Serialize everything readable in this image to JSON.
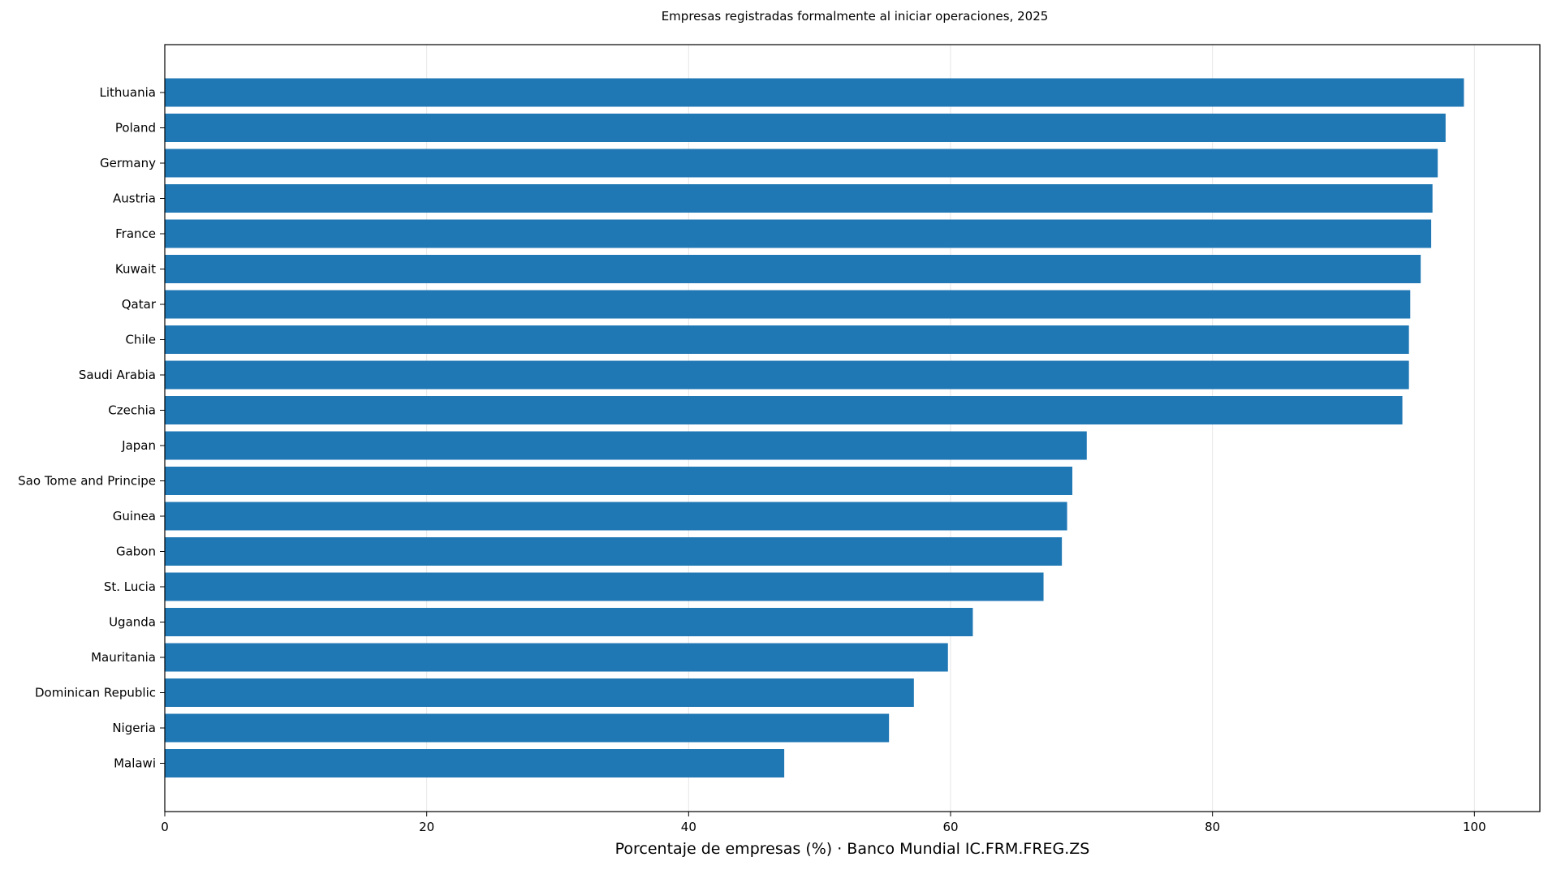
{
  "chart_data": {
    "type": "bar",
    "orientation": "horizontal",
    "title": "Empresas registradas formalmente al iniciar operaciones, 2025",
    "xlabel": "Porcentaje de empresas (%) · Banco Mundial IC.FRM.FREG.ZS",
    "ylabel": "",
    "xlim": [
      0,
      105
    ],
    "xticks": [
      0,
      20,
      40,
      60,
      80,
      100
    ],
    "grid": "vertical",
    "bar_color": "#1f77b4",
    "categories": [
      "Lithuania",
      "Poland",
      "Germany",
      "Austria",
      "France",
      "Kuwait",
      "Qatar",
      "Chile",
      "Saudi Arabia",
      "Czechia",
      "Japan",
      "Sao Tome and Principe",
      "Guinea",
      "Gabon",
      "St. Lucia",
      "Uganda",
      "Mauritania",
      "Dominican Republic",
      "Nigeria",
      "Malawi"
    ],
    "values": [
      99.2,
      97.8,
      97.2,
      96.8,
      96.7,
      95.9,
      95.1,
      95.0,
      95.0,
      94.5,
      70.4,
      69.3,
      68.9,
      68.5,
      67.1,
      61.7,
      59.8,
      57.2,
      55.3,
      47.3
    ]
  }
}
